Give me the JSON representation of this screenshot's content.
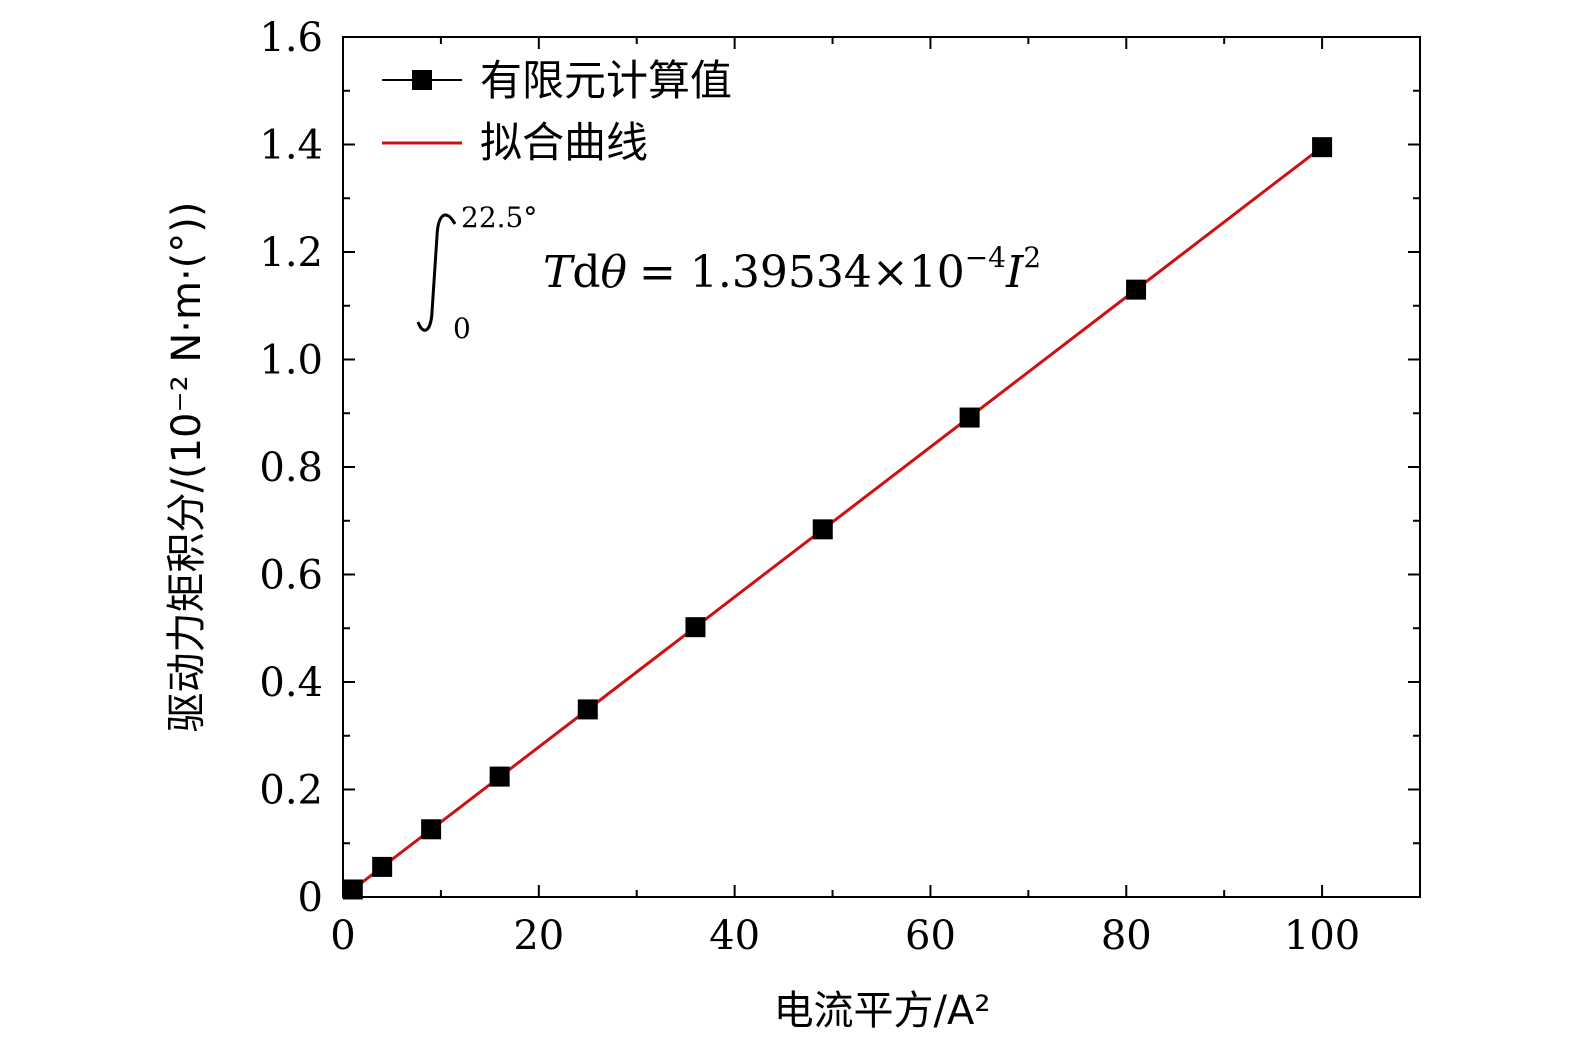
{
  "chart_data": {
    "type": "scatter",
    "title": "",
    "xlabel": "电流平方/A²",
    "ylabel": "驱动力矩积分/(10⁻² N·m·(°))",
    "xlim": [
      0,
      110
    ],
    "ylim": [
      0,
      1.6
    ],
    "x_ticks": [
      0,
      20,
      40,
      60,
      80,
      100
    ],
    "x_tick_labels": [
      "0",
      "20",
      "40",
      "60",
      "80",
      "100"
    ],
    "y_ticks": [
      0,
      0.2,
      0.4,
      0.6,
      0.8,
      1.0,
      1.2,
      1.4,
      1.6
    ],
    "y_tick_labels": [
      "0",
      "0.2",
      "0.4",
      "0.6",
      "0.8",
      "1.0",
      "1.2",
      "1.4",
      "1.6"
    ],
    "grid": false,
    "legend_position": "top-left",
    "series": [
      {
        "name": "有限元计算值",
        "kind": "points",
        "marker": "square",
        "color": "#000000",
        "x": [
          1,
          4,
          9,
          16,
          25,
          36,
          49,
          64,
          81,
          100
        ],
        "y": [
          0.014,
          0.056,
          0.126,
          0.224,
          0.349,
          0.502,
          0.684,
          0.892,
          1.13,
          1.395
        ]
      },
      {
        "name": "拟合曲线",
        "kind": "line",
        "color": "#d01010",
        "x": [
          0,
          100
        ],
        "y": [
          0,
          1.39534
        ]
      }
    ],
    "annotation": {
      "upper_limit": "22.5°",
      "lower_limit": "0",
      "T": "T",
      "d": "d",
      "theta": "θ",
      "equals_coef": "= 1.39534×10",
      "exp": "−4",
      "I": "I",
      "I_exp": "2"
    }
  }
}
